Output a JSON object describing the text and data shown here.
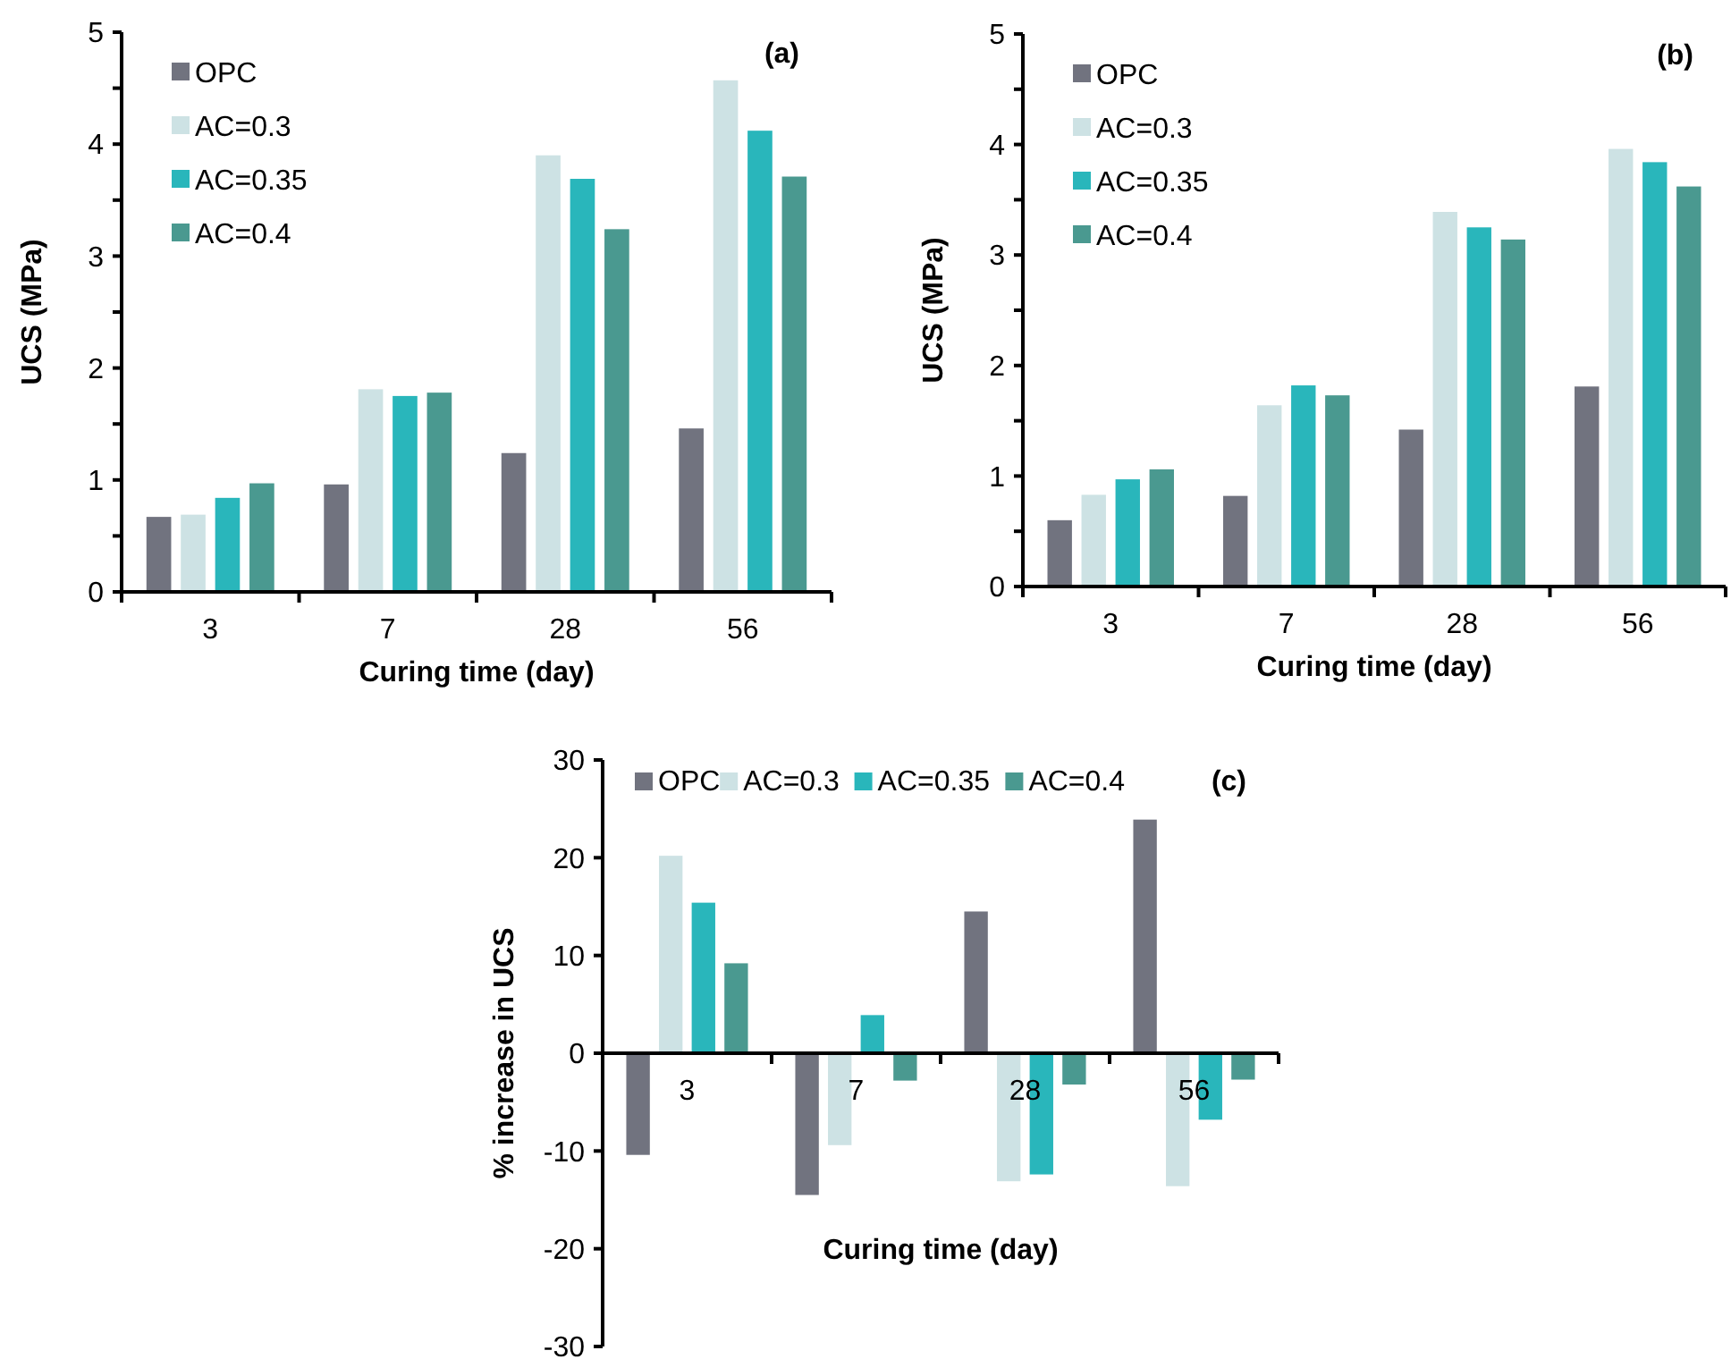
{
  "chart_data": [
    {
      "type": "bar",
      "xlabel": "Curing time (day)",
      "ylabel": "UCS (MPa)",
      "annotations": [
        "(a)"
      ],
      "categories": [
        "3",
        "7",
        "28",
        "56"
      ],
      "series": [
        {
          "name": "OPC",
          "color": "#71737f",
          "values": [
            0.67,
            0.96,
            1.24,
            1.46
          ]
        },
        {
          "name": "AC=0.3",
          "color": "#cde2e4",
          "values": [
            0.69,
            1.81,
            3.9,
            4.57
          ]
        },
        {
          "name": "AC=0.35",
          "color": "#29b6bb",
          "values": [
            0.84,
            1.75,
            3.69,
            4.12
          ]
        },
        {
          "name": "AC=0.4",
          "color": "#4a9990",
          "values": [
            0.97,
            1.78,
            3.24,
            3.71
          ]
        }
      ],
      "ylim": [
        0,
        5
      ],
      "yticks": [
        0,
        {
          "value": 0.5,
          "label": null
        },
        1,
        {
          "value": 1.5,
          "label": null
        },
        2,
        {
          "value": 2.5,
          "label": null
        },
        3,
        {
          "value": 3.5,
          "label": null
        },
        4,
        {
          "value": 4.5,
          "label": null
        },
        5
      ],
      "grid": false,
      "legend": "top left"
    },
    {
      "type": "bar",
      "xlabel": "Curing time (day)",
      "ylabel": "UCS (MPa)",
      "annotations": [
        "(b)"
      ],
      "categories": [
        "3",
        "7",
        "28",
        "56"
      ],
      "series": [
        {
          "name": "OPC",
          "color": "#71737f",
          "values": [
            0.6,
            0.82,
            1.42,
            1.81
          ]
        },
        {
          "name": "AC=0.3",
          "color": "#cde2e4",
          "values": [
            0.83,
            1.64,
            3.39,
            3.96
          ]
        },
        {
          "name": "AC=0.35",
          "color": "#29b6bb",
          "values": [
            0.97,
            1.82,
            3.25,
            3.84
          ]
        },
        {
          "name": "AC=0.4",
          "color": "#4a9990",
          "values": [
            1.06,
            1.73,
            3.14,
            3.62
          ]
        }
      ],
      "ylim": [
        0,
        5
      ],
      "yticks": [
        0,
        {
          "value": 0.5,
          "label": null
        },
        1,
        {
          "value": 1.5,
          "label": null
        },
        2,
        {
          "value": 2.5,
          "label": null
        },
        3,
        {
          "value": 3.5,
          "label": null
        },
        4,
        {
          "value": 4.5,
          "label": null
        },
        5
      ],
      "grid": false,
      "legend": "top left"
    },
    {
      "type": "bar",
      "xlabel": "Curing time (day)",
      "ylabel": "% increase in UCS",
      "annotations": [
        "(c)"
      ],
      "categories": [
        "3",
        "7",
        "28",
        "56"
      ],
      "series": [
        {
          "name": "OPC",
          "color": "#71737f",
          "values": [
            -10.4,
            -14.5,
            14.5,
            23.9
          ]
        },
        {
          "name": "AC=0.3",
          "color": "#cde2e4",
          "values": [
            20.2,
            -9.4,
            -13.1,
            -13.6
          ]
        },
        {
          "name": "AC=0.35",
          "color": "#29b6bb",
          "values": [
            15.4,
            3.9,
            -12.4,
            -6.8
          ]
        },
        {
          "name": "AC=0.4",
          "color": "#4a9990",
          "values": [
            9.2,
            -2.8,
            -3.2,
            -2.7
          ]
        }
      ],
      "ylim": [
        -30,
        30
      ],
      "yticks": [
        -30,
        -20,
        -10,
        0,
        10,
        20,
        30
      ],
      "grid": false,
      "legend": "top"
    }
  ]
}
